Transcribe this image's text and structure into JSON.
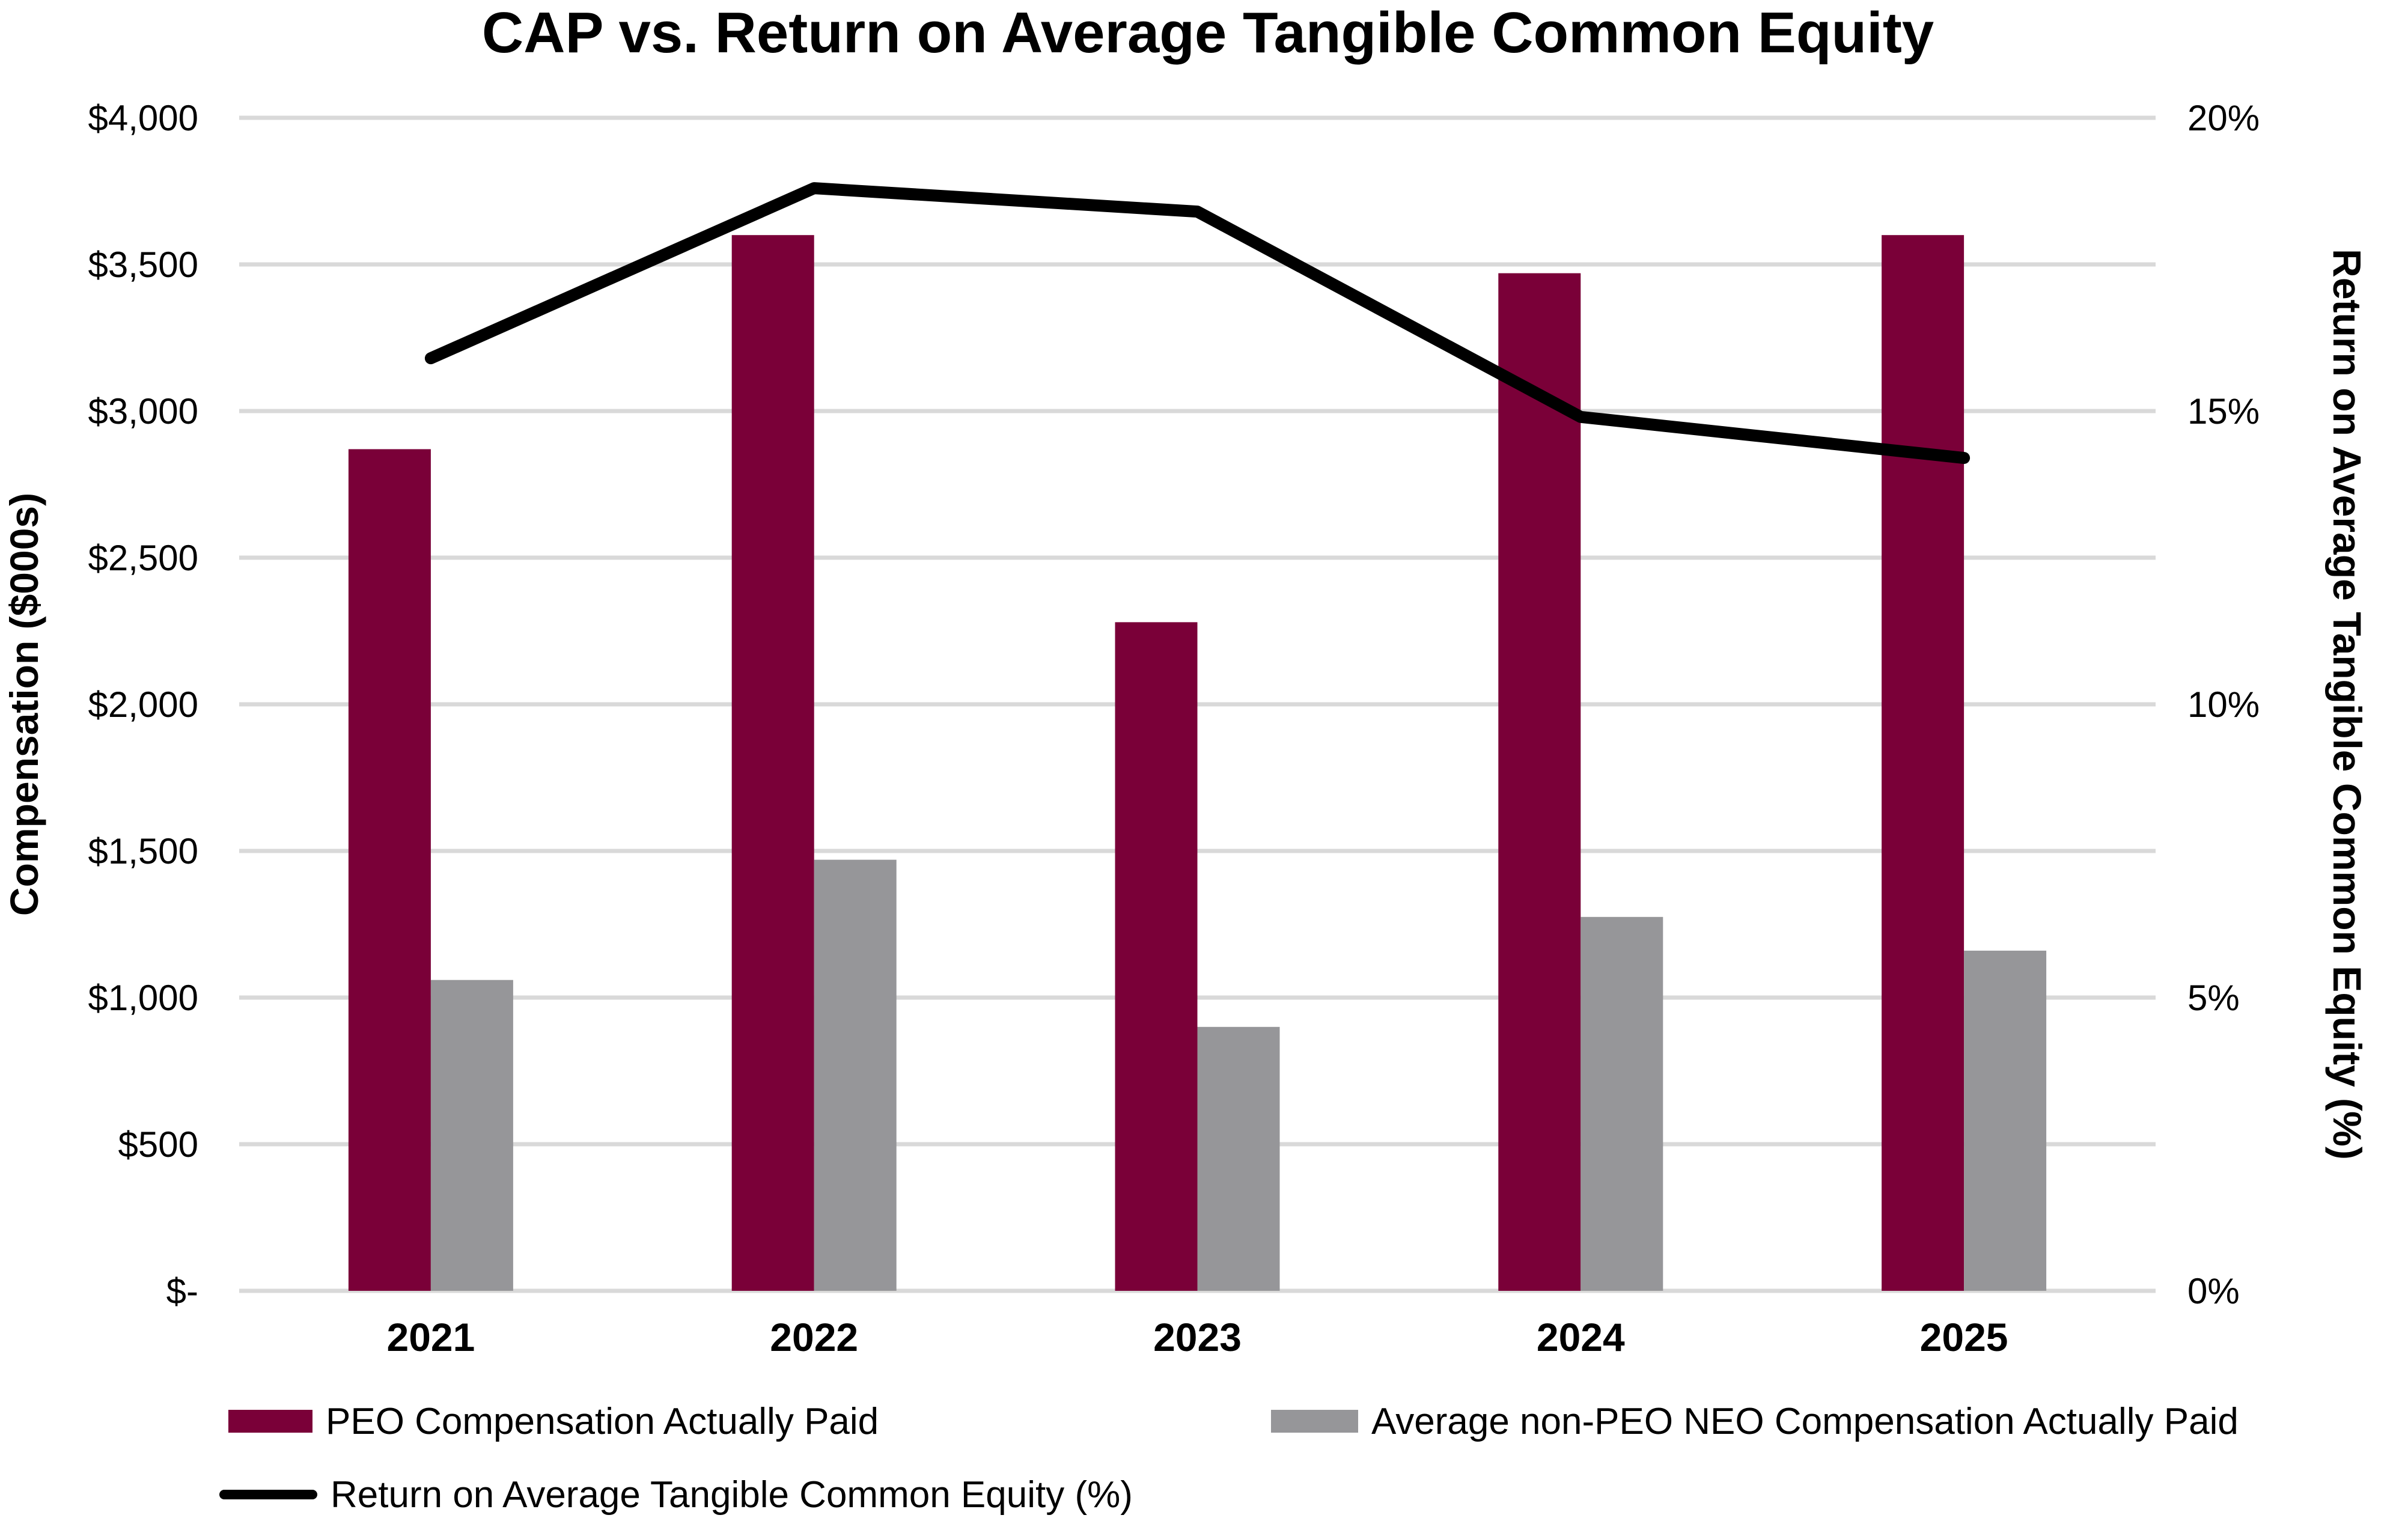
{
  "chart_data": {
    "type": "bar",
    "subtype": "combo-bar-line",
    "title": "CAP vs. Return on Average Tangible Common Equity",
    "categories": [
      "2021",
      "2022",
      "2023",
      "2024",
      "2025"
    ],
    "series": [
      {
        "name": "PEO Compensation Actually Paid",
        "type": "bar",
        "axis": "left",
        "color": "#7A0038",
        "values": [
          2870,
          3600,
          2280,
          3470,
          3600
        ]
      },
      {
        "name": "Average non-PEO NEO Compensation Actually Paid",
        "type": "bar",
        "axis": "left",
        "color": "#969699",
        "values": [
          1060,
          1470,
          900,
          1275,
          1160
        ]
      },
      {
        "name": "Return on Average Tangible Common Equity (%)",
        "type": "line",
        "axis": "right",
        "color": "#000000",
        "values": [
          15.9,
          18.8,
          18.4,
          14.9,
          14.2
        ]
      }
    ],
    "left_axis": {
      "title": "Compensation ($000s)",
      "min": 0,
      "max": 4000,
      "step": 500,
      "tick_labels": [
        "$-",
        "$500",
        "$1,000",
        "$1,500",
        "$2,000",
        "$2,500",
        "$3,000",
        "$3,500",
        "$4,000"
      ]
    },
    "right_axis": {
      "title": "Return on Average Tangible Common Equity (%)",
      "min": 0,
      "max": 20,
      "step": 5,
      "tick_labels": [
        "0%",
        "5%",
        "10%",
        "15%",
        "20%"
      ]
    },
    "grid": true,
    "gridline_color": "#D9D9D9",
    "legend_position": "bottom"
  }
}
